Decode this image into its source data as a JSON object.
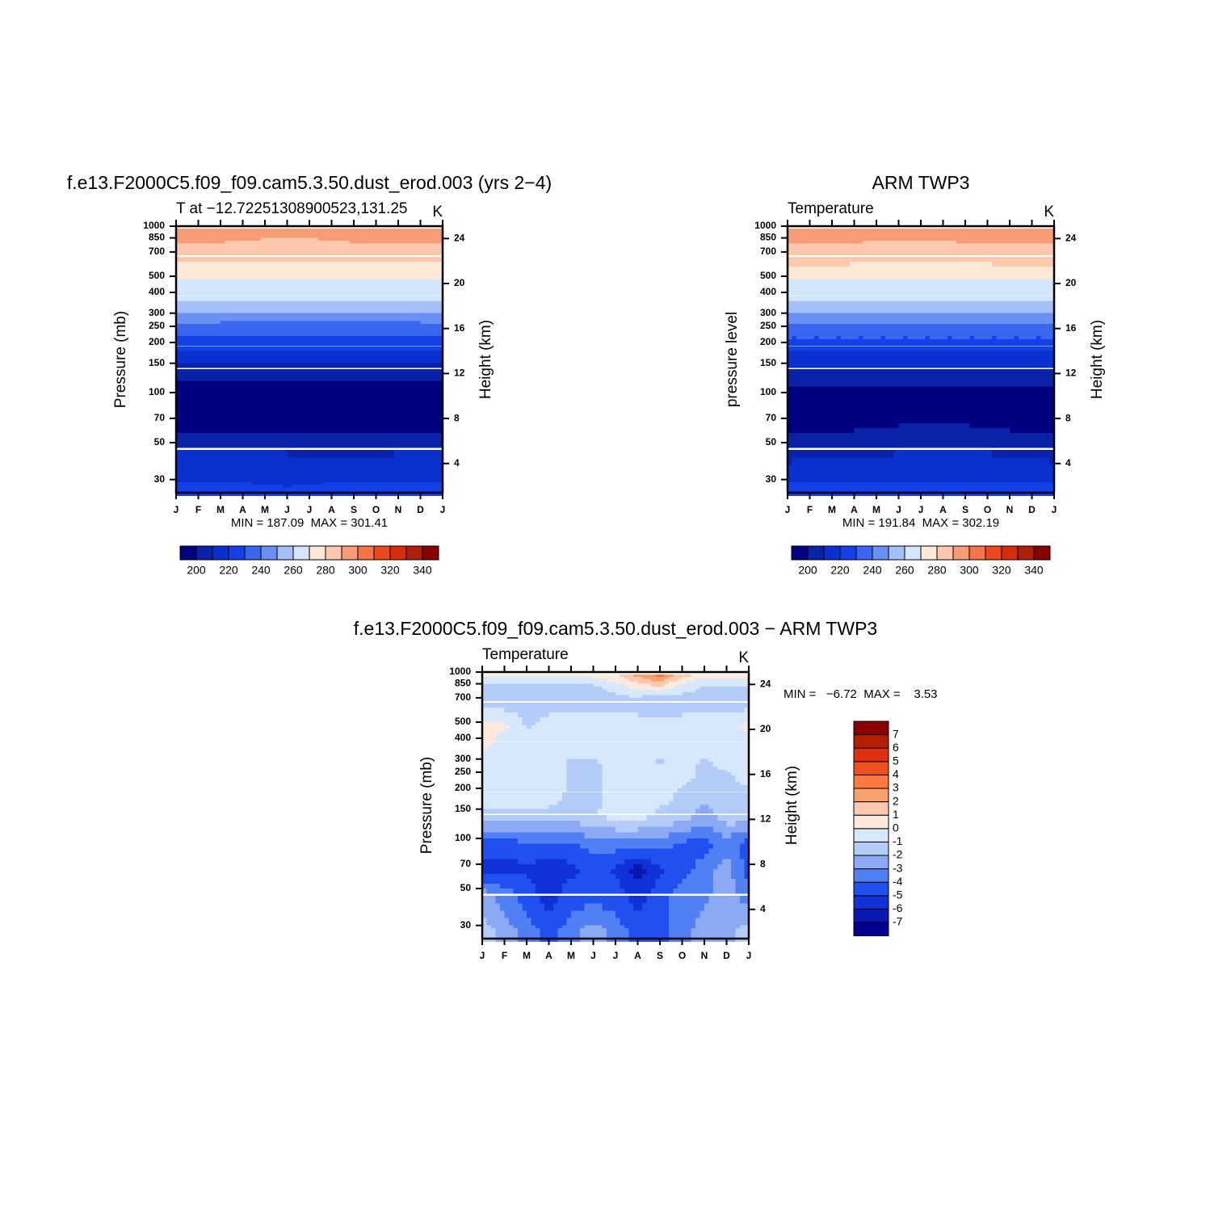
{
  "chart_data": [
    {
      "type": "contour",
      "title": "f.e13.F2000C5.f09_f09.cam5.3.50.dust_erod.003 (yrs 2−4)",
      "subtitle": "T at −12.72251308900523,131.25",
      "unit": "K",
      "ylabel": "Pressure (mb)",
      "y2label": "Height (km)",
      "stats": "MIN = 187.09  MAX = 301.41",
      "colorbar": "horizontal",
      "log_y": true,
      "categories": [
        "J",
        "F",
        "M",
        "A",
        "M",
        "J",
        "J",
        "A",
        "S",
        "O",
        "N",
        "D",
        "J"
      ],
      "y": [
        1000,
        850,
        700,
        500,
        400,
        300,
        250,
        200,
        150,
        100,
        70,
        50,
        30,
        25
      ],
      "z": [
        [
          297,
          297,
          297,
          297,
          297,
          296,
          296,
          296,
          297,
          297,
          297,
          297,
          297
        ],
        [
          291,
          291,
          291,
          290,
          289,
          289,
          289,
          290,
          291,
          291,
          291,
          291,
          291
        ],
        [
          284,
          284,
          283,
          283,
          283,
          283,
          282,
          282,
          282,
          283,
          283,
          284,
          284
        ],
        [
          270,
          270,
          270,
          270,
          270,
          270,
          270,
          269,
          269,
          269,
          270,
          270,
          270
        ],
        [
          263,
          263,
          263,
          263,
          263,
          263,
          263,
          263,
          263,
          263,
          263,
          263,
          263
        ],
        [
          246,
          246,
          245,
          245,
          245,
          245,
          245,
          245,
          245,
          245,
          245,
          245,
          246
        ],
        [
          235,
          235,
          235,
          234,
          234,
          234,
          234,
          234,
          234,
          234,
          234,
          235,
          235
        ],
        [
          223,
          223,
          223,
          223,
          223,
          222,
          222,
          222,
          222,
          222,
          222,
          223,
          223
        ],
        [
          208,
          208,
          208,
          208,
          208,
          208,
          208,
          208,
          208,
          208,
          208,
          208,
          208
        ],
        [
          190,
          190,
          190,
          190,
          190,
          190,
          190,
          190,
          190,
          190,
          190,
          190,
          190
        ],
        [
          195,
          195,
          195,
          195,
          195,
          195,
          195,
          195,
          195,
          195,
          195,
          195,
          195
        ],
        [
          209,
          210,
          211,
          211,
          210,
          209,
          209,
          208,
          207,
          208,
          209,
          209,
          209
        ],
        [
          221,
          221,
          220,
          220,
          219,
          218,
          219,
          220,
          221,
          221,
          221,
          221,
          221
        ],
        [
          224,
          224,
          224,
          224,
          224,
          224,
          224,
          224,
          224,
          224,
          224,
          224,
          224
        ]
      ],
      "ylim": [
        1000,
        25
      ],
      "yticks": [
        30,
        50,
        70,
        100,
        150,
        200,
        250,
        300,
        400,
        500,
        700,
        850,
        1000
      ],
      "y2lim": [
        1.4,
        25.1
      ],
      "y2ticks": [
        4,
        8,
        12,
        16,
        20,
        24
      ],
      "levels": [
        200,
        210,
        220,
        230,
        240,
        250,
        260,
        270,
        280,
        290,
        300,
        310,
        320,
        330,
        340
      ],
      "colors": [
        "#000080",
        "#0a22a8",
        "#0a30d0",
        "#1440e8",
        "#3a66f0",
        "#6a90f4",
        "#a4c0f8",
        "#d4e6fc",
        "#fee8d6",
        "#fcc8ae",
        "#f89c78",
        "#f47448",
        "#ec4a1e",
        "#d42e0a",
        "#ae200a",
        "#880000"
      ]
    },
    {
      "type": "contour",
      "title": "ARM TWP3",
      "subtitle": "Temperature",
      "unit": "K",
      "ylabel": "pressure level",
      "y2label": "Height (km)",
      "stats": "MIN = 191.84  MAX = 302.19",
      "colorbar": "horizontal",
      "log_y": true,
      "categories": [
        "J",
        "F",
        "M",
        "A",
        "M",
        "J",
        "J",
        "A",
        "S",
        "O",
        "N",
        "D",
        "J"
      ],
      "y": [
        1000,
        850,
        700,
        500,
        400,
        300,
        250,
        200,
        150,
        100,
        70,
        50,
        30,
        25
      ],
      "z": [
        [
          297,
          297,
          297,
          296,
          296,
          296,
          296,
          296,
          297,
          297,
          297,
          297,
          297
        ],
        [
          292,
          292,
          291,
          291,
          290,
          290,
          290,
          290,
          291,
          292,
          292,
          292,
          292
        ],
        [
          285,
          285,
          285,
          284,
          284,
          284,
          284,
          284,
          284,
          284,
          285,
          285,
          285
        ],
        [
          270,
          270,
          270,
          270,
          270,
          270,
          270,
          270,
          270,
          270,
          270,
          270,
          270
        ],
        [
          263,
          263,
          263,
          263,
          263,
          263,
          263,
          263,
          263,
          263,
          263,
          263,
          263
        ],
        [
          246,
          246,
          246,
          246,
          246,
          246,
          246,
          246,
          246,
          246,
          246,
          246,
          246
        ],
        [
          236,
          236,
          236,
          236,
          236,
          236,
          236,
          236,
          236,
          236,
          236,
          236,
          236
        ],
        [
          224,
          224,
          224,
          224,
          224,
          224,
          224,
          224,
          224,
          224,
          224,
          224,
          224
        ],
        [
          209,
          209,
          209,
          209,
          209,
          209,
          209,
          209,
          209,
          209,
          209,
          209,
          209
        ],
        [
          194,
          194,
          194,
          194,
          194,
          195,
          195,
          195,
          195,
          194,
          194,
          194,
          194
        ],
        [
          196,
          196,
          196,
          197,
          198,
          199,
          200,
          200,
          199,
          198,
          197,
          196,
          196
        ],
        [
          205,
          206,
          207,
          207,
          208,
          209,
          210,
          211,
          210,
          209,
          207,
          206,
          205
        ],
        [
          221,
          221,
          221,
          221,
          221,
          220,
          220,
          220,
          220,
          221,
          221,
          221,
          221
        ],
        [
          224,
          224,
          224,
          224,
          224,
          224,
          224,
          224,
          224,
          224,
          224,
          224,
          224
        ]
      ],
      "ylim": [
        1000,
        25
      ],
      "yticks": [
        30,
        50,
        70,
        100,
        150,
        200,
        250,
        300,
        400,
        500,
        700,
        850,
        1000
      ],
      "y2lim": [
        1.4,
        25.1
      ],
      "y2ticks": [
        4,
        8,
        12,
        16,
        20,
        24
      ],
      "levels": [
        200,
        210,
        220,
        230,
        240,
        250,
        260,
        270,
        280,
        290,
        300,
        310,
        320,
        330,
        340
      ],
      "colors": [
        "#000080",
        "#0a22a8",
        "#0a30d0",
        "#1440e8",
        "#3a66f0",
        "#6a90f4",
        "#a4c0f8",
        "#d4e6fc",
        "#fee8d6",
        "#fcc8ae",
        "#f89c78",
        "#f47448",
        "#ec4a1e",
        "#d42e0a",
        "#ae200a",
        "#880000"
      ]
    },
    {
      "type": "contour",
      "title": "f.e13.F2000C5.f09_f09.cam5.3.50.dust_erod.003 − ARM TWP3",
      "subtitle": "Temperature",
      "unit": "K",
      "ylabel": "Pressure (mb)",
      "y2label": "Height (km)",
      "stats": "MIN =   −6.72  MAX =    3.53",
      "colorbar": "vertical",
      "log_y": true,
      "categories": [
        "J",
        "F",
        "M",
        "A",
        "M",
        "J",
        "J",
        "A",
        "S",
        "O",
        "N",
        "D",
        "J"
      ],
      "y": [
        1000,
        850,
        700,
        500,
        400,
        300,
        250,
        200,
        150,
        100,
        70,
        50,
        30,
        25
      ],
      "z": [
        [
          0.5,
          0.5,
          0.5,
          0.5,
          0.5,
          0.5,
          1,
          2.5,
          3.5,
          1.5,
          0.5,
          0.5,
          0.5
        ],
        [
          -1.2,
          -1.5,
          -1.5,
          -1.5,
          -1.5,
          -1.2,
          -0.5,
          0.5,
          1,
          -0.5,
          -1,
          -1,
          -1
        ],
        [
          -1.5,
          -1.5,
          -1.5,
          -1.5,
          -1.5,
          -1.5,
          -1.5,
          -1.5,
          -2.2,
          -1.5,
          -1.5,
          -1.5,
          -1.5
        ],
        [
          0.5,
          0.3,
          -1.2,
          -0.5,
          -0.5,
          -0.5,
          -0.5,
          -0.5,
          -0.5,
          -0.5,
          -0.5,
          -0.5,
          0.3
        ],
        [
          0.5,
          -0.5,
          -0.5,
          -0.5,
          -0.5,
          -0.5,
          -0.5,
          -0.5,
          -0.5,
          -0.5,
          -0.5,
          -0.5,
          -0.5
        ],
        [
          -0.5,
          -0.5,
          -0.5,
          -0.5,
          -1.2,
          -1.2,
          -0.5,
          -0.5,
          -1.2,
          -0.5,
          -1.2,
          -0.5,
          -0.5
        ],
        [
          -0.5,
          -0.5,
          -0.5,
          -0.5,
          -1.2,
          -1.3,
          -0.5,
          -0.5,
          -0.5,
          -0.5,
          -1.3,
          -1.2,
          -0.5
        ],
        [
          -0.5,
          -0.5,
          -0.5,
          -0.5,
          -1.2,
          -1.3,
          -0.5,
          -0.5,
          -0.5,
          -1.2,
          -1.5,
          -1.2,
          -1.2
        ],
        [
          -1.2,
          -1.2,
          -1.2,
          -1.2,
          -1.2,
          -1.2,
          -0.5,
          -0.5,
          -1.2,
          -1.2,
          -2.5,
          -1.2,
          -1.2
        ],
        [
          -4.5,
          -4.5,
          -4.2,
          -4.3,
          -4.2,
          -3.5,
          -3.5,
          -3.5,
          -3.5,
          -4.2,
          -4.5,
          -3.5,
          -4.5
        ],
        [
          -5.5,
          -5.5,
          -5.2,
          -5.5,
          -5.3,
          -4.5,
          -5.2,
          -6.5,
          -5.2,
          -4.5,
          -3.5,
          -2.5,
          -4.5
        ],
        [
          -2.5,
          -3.5,
          -4.5,
          -5.5,
          -4.5,
          -4.5,
          -4.5,
          -5.5,
          -4.5,
          -3.5,
          -3.2,
          -2.5,
          -3.5
        ],
        [
          -1.5,
          -2.5,
          -3.5,
          -4.5,
          -3.5,
          -2.5,
          -3.5,
          -4.5,
          -4.5,
          -3.5,
          -2.5,
          -2.5,
          -1.5
        ],
        [
          -1.5,
          -2.5,
          -3.5,
          -4.5,
          -3.5,
          -2.5,
          -3.5,
          -4.5,
          -4.5,
          -3.5,
          -2.5,
          -2.5,
          -1.5
        ]
      ],
      "ylim": [
        1000,
        25
      ],
      "yticks": [
        30,
        50,
        70,
        100,
        150,
        200,
        250,
        300,
        400,
        500,
        700,
        850,
        1000
      ],
      "y2lim": [
        1.4,
        25.1
      ],
      "y2ticks": [
        4,
        8,
        12,
        16,
        20,
        24
      ],
      "levels": [
        -7,
        -6,
        -5,
        -4,
        -3,
        -2,
        -1,
        0,
        1,
        2,
        3,
        4,
        5,
        6,
        7
      ],
      "colors": [
        "#000090",
        "#0818b0",
        "#1030d8",
        "#2050f0",
        "#5080f4",
        "#8caaf4",
        "#b4ccf8",
        "#d8e8fc",
        "#feeadc",
        "#fcc8b0",
        "#f8a070",
        "#ff7840",
        "#f05020",
        "#e03010",
        "#b22000",
        "#8b0000"
      ]
    }
  ]
}
